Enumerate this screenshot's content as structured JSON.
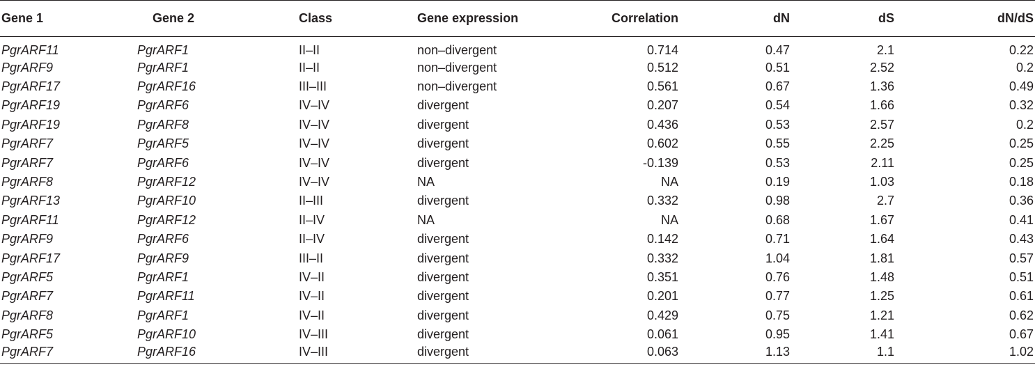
{
  "table": {
    "headers": [
      "Gene 1",
      "Gene 2",
      "Class",
      "Gene expression",
      "Correlation",
      "dN",
      "dS",
      "dN/dS"
    ],
    "rows": [
      [
        "PgrARF11",
        "PgrARF1",
        "II–II",
        "non–divergent",
        "0.714",
        "0.47",
        "2.1",
        "0.22"
      ],
      [
        "PgrARF9",
        "PgrARF1",
        "II–II",
        "non–divergent",
        "0.512",
        "0.51",
        "2.52",
        "0.2"
      ],
      [
        "PgrARF17",
        "PgrARF16",
        "III–III",
        "non–divergent",
        "0.561",
        "0.67",
        "1.36",
        "0.49"
      ],
      [
        "PgrARF19",
        "PgrARF6",
        "IV–IV",
        "divergent",
        "0.207",
        "0.54",
        "1.66",
        "0.32"
      ],
      [
        "PgrARF19",
        "PgrARF8",
        "IV–IV",
        "divergent",
        "0.436",
        "0.53",
        "2.57",
        "0.2"
      ],
      [
        "PgrARF7",
        "PgrARF5",
        "IV–IV",
        "divergent",
        "0.602",
        "0.55",
        "2.25",
        "0.25"
      ],
      [
        "PgrARF7",
        "PgrARF6",
        "IV–IV",
        "divergent",
        "-0.139",
        "0.53",
        "2.11",
        "0.25"
      ],
      [
        "PgrARF8",
        "PgrARF12",
        "IV–IV",
        "NA",
        "NA",
        "0.19",
        "1.03",
        "0.18"
      ],
      [
        "PgrARF13",
        "PgrARF10",
        "II–III",
        "divergent",
        "0.332",
        "0.98",
        "2.7",
        "0.36"
      ],
      [
        "PgrARF11",
        "PgrARF12",
        "II–IV",
        "NA",
        "NA",
        "0.68",
        "1.67",
        "0.41"
      ],
      [
        "PgrARF9",
        "PgrARF6",
        "II–IV",
        "divergent",
        "0.142",
        "0.71",
        "1.64",
        "0.43"
      ],
      [
        "PgrARF17",
        "PgrARF9",
        "III–II",
        "divergent",
        "0.332",
        "1.04",
        "1.81",
        "0.57"
      ],
      [
        "PgrARF5",
        "PgrARF1",
        "IV–II",
        "divergent",
        "0.351",
        "0.76",
        "1.48",
        "0.51"
      ],
      [
        "PgrARF7",
        "PgrARF11",
        "IV–II",
        "divergent",
        "0.201",
        "0.77",
        "1.25",
        "0.61"
      ],
      [
        "PgrARF8",
        "PgrARF1",
        "IV–II",
        "divergent",
        "0.429",
        "0.75",
        "1.21",
        "0.62"
      ],
      [
        "PgrARF5",
        "PgrARF10",
        "IV–III",
        "divergent",
        "0.061",
        "0.95",
        "1.41",
        "0.67"
      ],
      [
        "PgrARF7",
        "PgrARF16",
        "IV–III",
        "divergent",
        "0.063",
        "1.13",
        "1.1",
        "1.02"
      ]
    ]
  }
}
